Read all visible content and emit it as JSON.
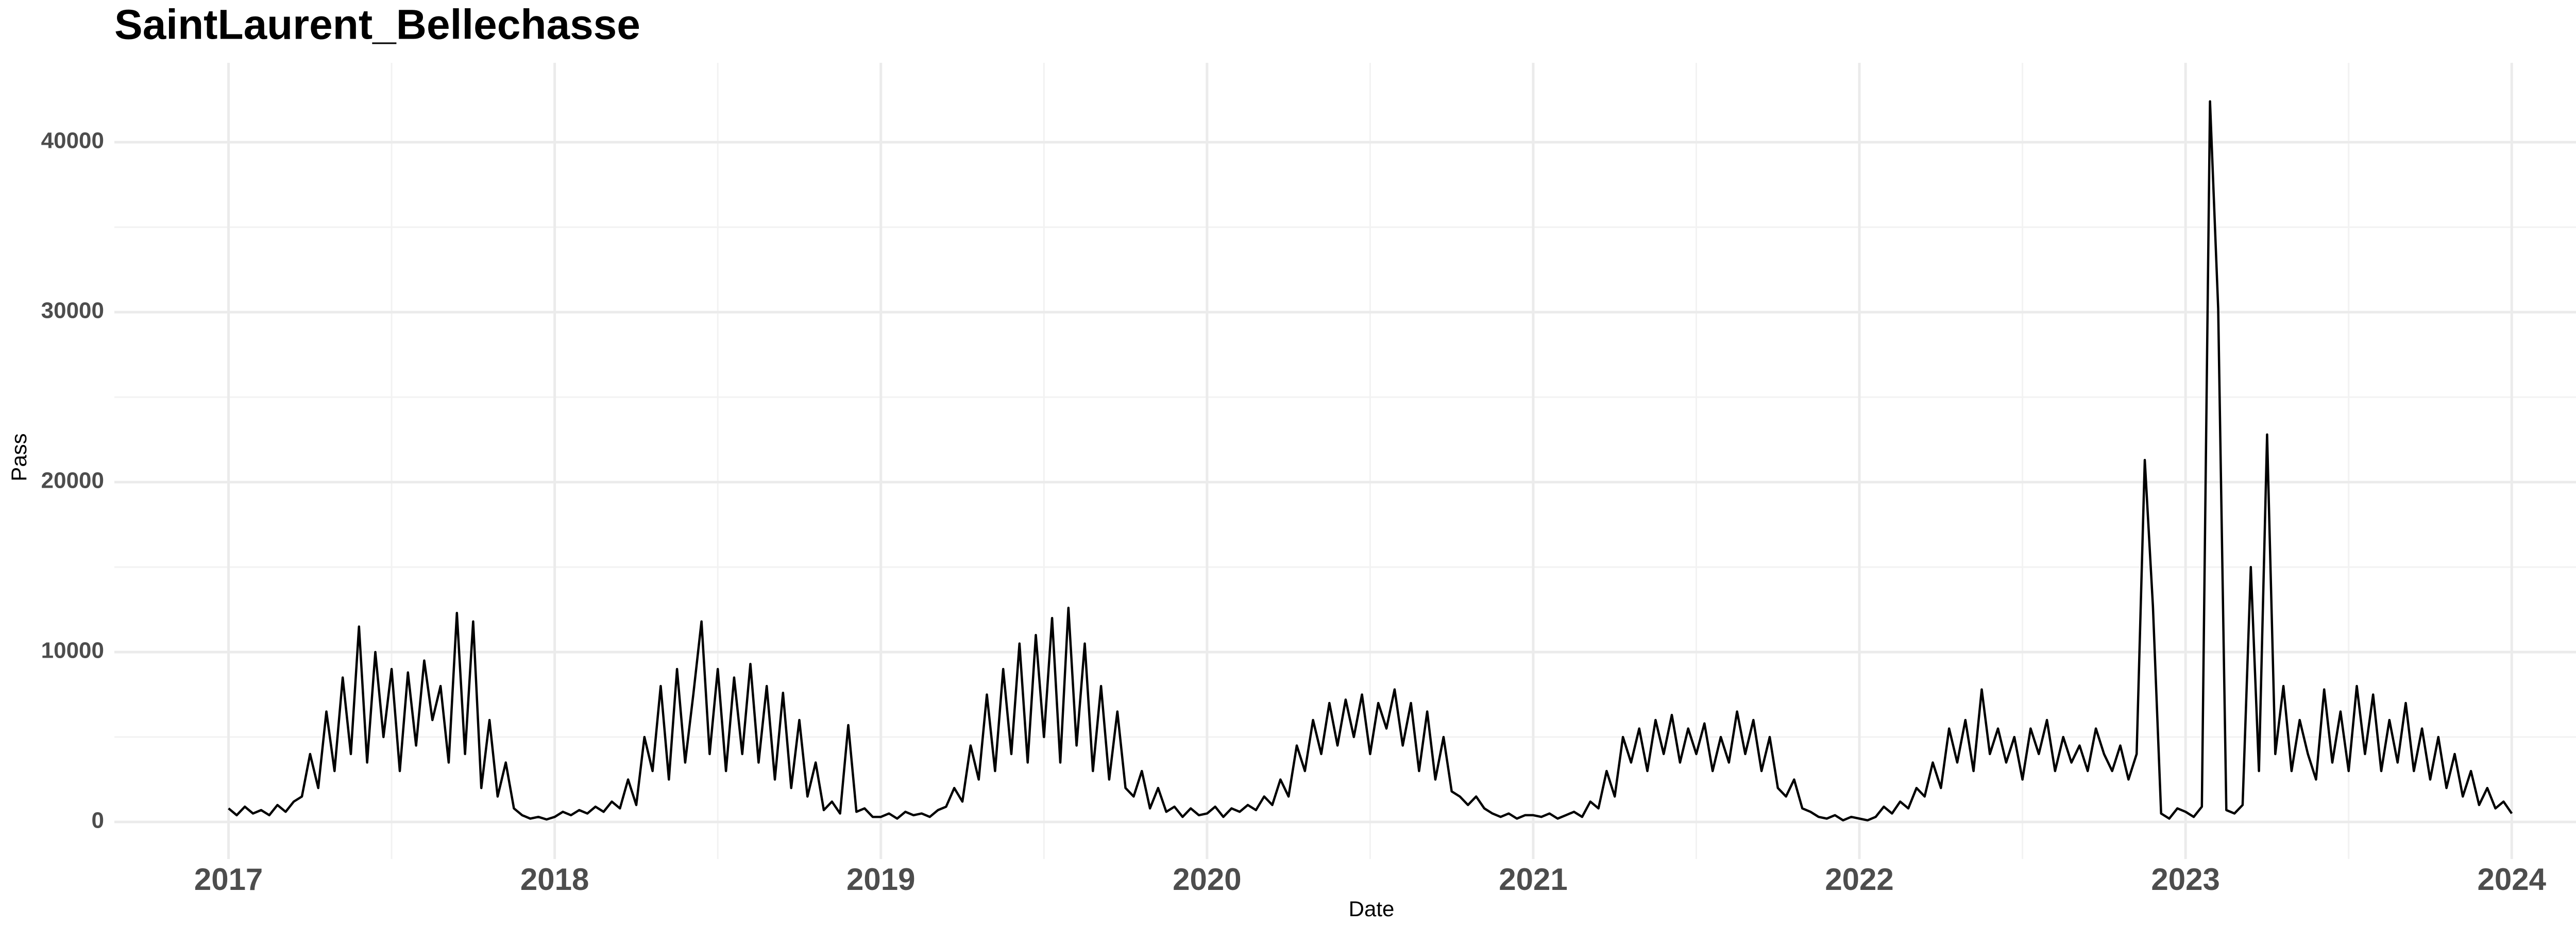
{
  "chart_data": {
    "type": "line",
    "title": "SaintLaurent_Bellechasse",
    "xlabel": "Date",
    "ylabel": "Pass",
    "color": "#000000",
    "grid": true,
    "xlim": [
      2016.65,
      2024.355
    ],
    "xticks": [
      2017,
      2018,
      2019,
      2020,
      2021,
      2022,
      2023,
      2024
    ],
    "ylim": [
      -2180,
      44670
    ],
    "yticks": [
      0,
      10000,
      20000,
      30000,
      40000
    ],
    "x": [
      2017,
      2017.025,
      2017.05,
      2017.075,
      2017.1,
      2017.125,
      2017.15,
      2017.175,
      2017.2,
      2017.225,
      2017.25,
      2017.275,
      2017.3,
      2017.325,
      2017.35,
      2017.375,
      2017.4,
      2017.425,
      2017.45,
      2017.475,
      2017.5,
      2017.525,
      2017.55,
      2017.575,
      2017.6,
      2017.625,
      2017.65,
      2017.675,
      2017.7,
      2017.725,
      2017.75,
      2017.775,
      2017.8,
      2017.825,
      2017.85,
      2017.875,
      2017.9,
      2017.925,
      2017.95,
      2017.975,
      2018,
      2018.025,
      2018.05,
      2018.075,
      2018.1,
      2018.125,
      2018.15,
      2018.175,
      2018.2,
      2018.225,
      2018.25,
      2018.275,
      2018.3,
      2018.325,
      2018.35,
      2018.375,
      2018.4,
      2018.425,
      2018.45,
      2018.475,
      2018.5,
      2018.525,
      2018.55,
      2018.575,
      2018.6,
      2018.625,
      2018.65,
      2018.675,
      2018.7,
      2018.725,
      2018.75,
      2018.775,
      2018.8,
      2018.825,
      2018.85,
      2018.875,
      2018.9,
      2018.925,
      2018.95,
      2018.975,
      2019,
      2019.025,
      2019.05,
      2019.075,
      2019.1,
      2019.125,
      2019.15,
      2019.175,
      2019.2,
      2019.225,
      2019.25,
      2019.275,
      2019.3,
      2019.325,
      2019.35,
      2019.375,
      2019.4,
      2019.425,
      2019.45,
      2019.475,
      2019.5,
      2019.525,
      2019.55,
      2019.575,
      2019.6,
      2019.625,
      2019.65,
      2019.675,
      2019.7,
      2019.725,
      2019.75,
      2019.775,
      2019.8,
      2019.825,
      2019.85,
      2019.875,
      2019.9,
      2019.925,
      2019.95,
      2019.975,
      2020,
      2020.025,
      2020.05,
      2020.075,
      2020.1,
      2020.125,
      2020.15,
      2020.175,
      2020.2,
      2020.225,
      2020.25,
      2020.275,
      2020.3,
      2020.325,
      2020.35,
      2020.375,
      2020.4,
      2020.425,
      2020.45,
      2020.475,
      2020.5,
      2020.525,
      2020.55,
      2020.575,
      2020.6,
      2020.625,
      2020.65,
      2020.675,
      2020.7,
      2020.725,
      2020.75,
      2020.775,
      2020.8,
      2020.825,
      2020.85,
      2020.875,
      2020.9,
      2020.925,
      2020.95,
      2020.975,
      2021,
      2021.025,
      2021.05,
      2021.075,
      2021.1,
      2021.125,
      2021.15,
      2021.175,
      2021.2,
      2021.225,
      2021.25,
      2021.275,
      2021.3,
      2021.325,
      2021.35,
      2021.375,
      2021.4,
      2021.425,
      2021.45,
      2021.475,
      2021.5,
      2021.525,
      2021.55,
      2021.575,
      2021.6,
      2021.625,
      2021.65,
      2021.675,
      2021.7,
      2021.725,
      2021.75,
      2021.775,
      2021.8,
      2021.825,
      2021.85,
      2021.875,
      2021.9,
      2021.925,
      2021.95,
      2021.975,
      2022,
      2022.025,
      2022.05,
      2022.075,
      2022.1,
      2022.125,
      2022.15,
      2022.175,
      2022.2,
      2022.225,
      2022.25,
      2022.275,
      2022.3,
      2022.325,
      2022.35,
      2022.375,
      2022.4,
      2022.425,
      2022.45,
      2022.475,
      2022.5,
      2022.525,
      2022.55,
      2022.575,
      2022.6,
      2022.625,
      2022.65,
      2022.675,
      2022.7,
      2022.725,
      2022.75,
      2022.775,
      2022.8,
      2022.825,
      2022.85,
      2022.875,
      2022.9,
      2022.925,
      2022.95,
      2022.975,
      2023,
      2023.025,
      2023.05,
      2023.075,
      2023.1,
      2023.125,
      2023.15,
      2023.175,
      2023.2,
      2023.225,
      2023.25,
      2023.275,
      2023.3,
      2023.325,
      2023.35,
      2023.375,
      2023.4,
      2023.425,
      2023.45,
      2023.475,
      2023.5,
      2023.525,
      2023.55,
      2023.575,
      2023.6,
      2023.625,
      2023.65,
      2023.675,
      2023.7,
      2023.725,
      2023.75,
      2023.775,
      2023.8,
      2023.825,
      2023.85,
      2023.875,
      2023.9,
      2023.925,
      2023.95,
      2023.975,
      2024
    ],
    "values": [
      800,
      400,
      900,
      500,
      700,
      400,
      1000,
      600,
      1200,
      1500,
      4000,
      2000,
      6500,
      3000,
      8500,
      4000,
      11500,
      3500,
      10000,
      5000,
      9000,
      3000,
      8800,
      4500,
      9500,
      6000,
      8000,
      3500,
      12300,
      4000,
      11800,
      2000,
      6000,
      1500,
      3500,
      800,
      400,
      200,
      300,
      150,
      300,
      600,
      400,
      700,
      500,
      900,
      600,
      1200,
      800,
      2500,
      1000,
      5000,
      3000,
      8000,
      2500,
      9000,
      3500,
      7500,
      11800,
      4000,
      9000,
      3000,
      8500,
      4000,
      9300,
      3500,
      8000,
      2500,
      7600,
      2000,
      6000,
      1500,
      3500,
      700,
      1200,
      500,
      5700,
      600,
      800,
      300,
      300,
      500,
      200,
      600,
      400,
      500,
      300,
      700,
      900,
      2000,
      1200,
      4500,
      2500,
      7500,
      3000,
      9000,
      4000,
      10500,
      3500,
      11000,
      5000,
      12000,
      3500,
      12600,
      4500,
      10500,
      3000,
      8000,
      2500,
      6500,
      2000,
      1500,
      3000,
      800,
      2000,
      600,
      900,
      300,
      800,
      400,
      500,
      900,
      300,
      800,
      600,
      1000,
      700,
      1500,
      1000,
      2500,
      1500,
      4500,
      3000,
      6000,
      4000,
      7000,
      4500,
      7200,
      5000,
      7500,
      4000,
      7000,
      5500,
      7800,
      4500,
      7000,
      3000,
      6500,
      2500,
      5000,
      1800,
      1500,
      1000,
      1500,
      800,
      500,
      300,
      500,
      200,
      400,
      400,
      300,
      500,
      200,
      400,
      600,
      300,
      1200,
      800,
      3000,
      1500,
      5000,
      3500,
      5500,
      3000,
      6000,
      4000,
      6300,
      3500,
      5500,
      4000,
      5800,
      3000,
      5000,
      3500,
      6500,
      4000,
      6000,
      3000,
      5000,
      2000,
      1500,
      2500,
      800,
      600,
      300,
      200,
      400,
      100,
      300,
      200,
      100,
      300,
      900,
      500,
      1200,
      800,
      2000,
      1500,
      3500,
      2000,
      5500,
      3500,
      6000,
      3000,
      7800,
      4000,
      5500,
      3500,
      5000,
      2500,
      5500,
      4000,
      6000,
      3000,
      5000,
      3500,
      4500,
      3000,
      5500,
      4000,
      3000,
      4500,
      2500,
      4000,
      21300,
      12700,
      500,
      200,
      800,
      600,
      300,
      900,
      42400,
      30200,
      700,
      500,
      1000,
      15000,
      3000,
      22800,
      4000,
      8000,
      3000,
      6000,
      4000,
      2500,
      7800,
      3500,
      6500,
      3000,
      8000,
      4000,
      7500,
      3000,
      6000,
      3500,
      7000,
      3000,
      5500,
      2500,
      5000,
      2000,
      4000,
      1500,
      3000,
      1000,
      2000,
      800,
      1200,
      500
    ]
  }
}
